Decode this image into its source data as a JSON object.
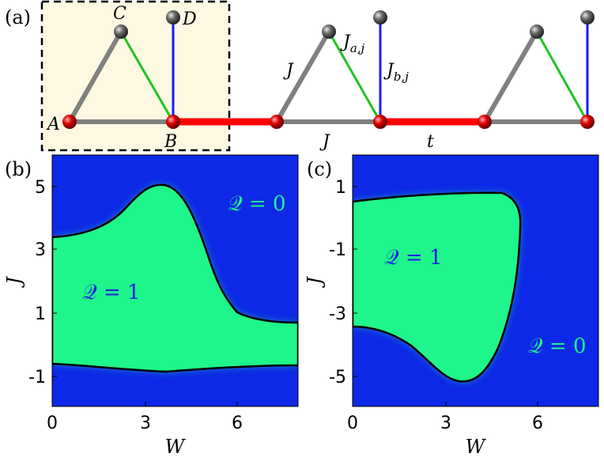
{
  "panel_a": {
    "label": "(a)",
    "sites": {
      "A": "A",
      "B": "B",
      "C": "C",
      "D": "D"
    },
    "bond_labels": {
      "J_side": "J",
      "Ja": "J",
      "Ja_sub": "a,j",
      "Jb": "J",
      "Jb_sub": "b,j",
      "J_bottom": "J",
      "t": "t"
    },
    "colors": {
      "J_bond": "#808080",
      "Ja_bond": "#22c322",
      "Jb_bond": "#1a1aff",
      "t_bond": "#ff0000",
      "site_red": "#e00000",
      "site_gray": "#555555",
      "box_fill": "#fdf8e2"
    }
  },
  "panel_b": {
    "label": "(b)",
    "xlabel": "W",
    "ylabel": "J",
    "xticks": [
      "0",
      "3",
      "6"
    ],
    "yticks": [
      "5",
      "3",
      "1",
      "-1"
    ],
    "q_top": "𝒬 = 0",
    "q_mid": "𝒬 = 1",
    "colors": {
      "background": "#0d28e6",
      "topological": "#1ef58a",
      "boundary": "#000000",
      "q0_text": "#1ef58a",
      "q1_text": "#1a22e0"
    }
  },
  "panel_c": {
    "label": "(c)",
    "xlabel": "W",
    "ylabel": "J",
    "xticks": [
      "0",
      "3",
      "6"
    ],
    "yticks": [
      "1",
      "-1",
      "-3",
      "-5"
    ],
    "q_mid": "𝒬 = 1",
    "q_bot": "𝒬 = 0"
  }
}
